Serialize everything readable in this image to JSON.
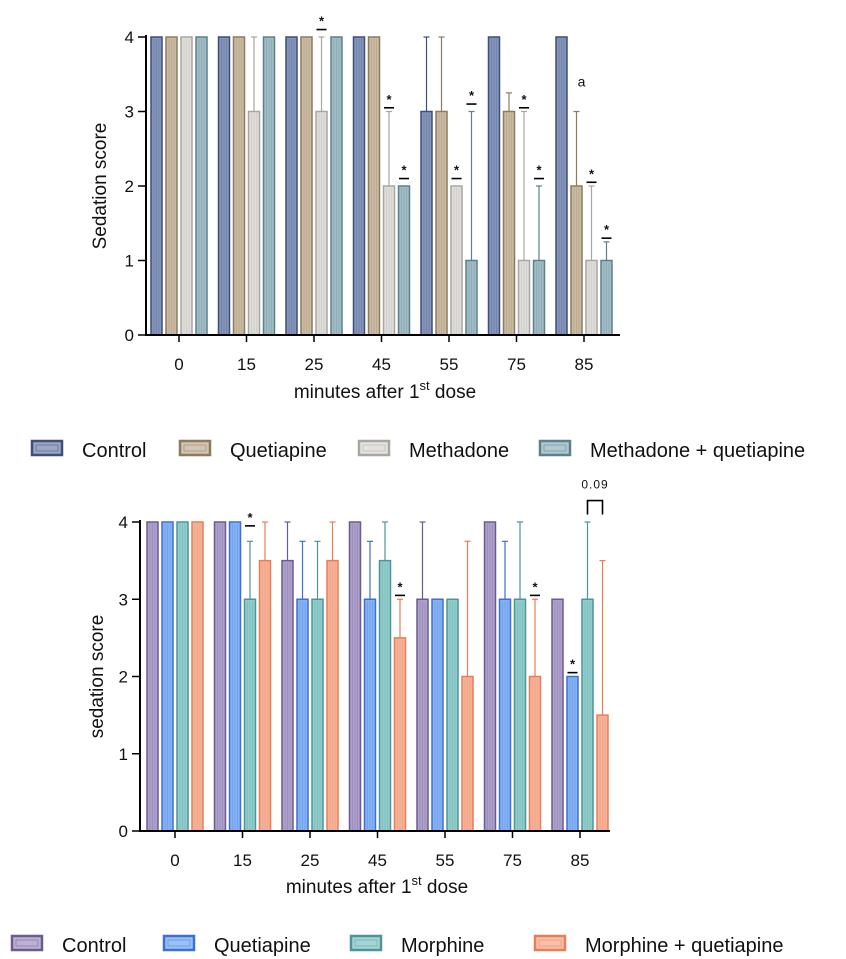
{
  "chart_data": [
    {
      "type": "bar",
      "title": "",
      "xlabel": "minutes after 1",
      "xlabel_sup": "st",
      "xlabel_suffix": " dose",
      "ylabel": "Sedation score",
      "ylim": [
        0,
        4
      ],
      "yticks": [
        "0",
        "1",
        "2",
        "3",
        "4"
      ],
      "categories": [
        "0",
        "15",
        "25",
        "45",
        "55",
        "75",
        "85"
      ],
      "legend_position": "bottom",
      "series": [
        {
          "name": "Control",
          "color": "#6f82ad",
          "edge": "#3d4f7a",
          "values": [
            4,
            4,
            4,
            4,
            3,
            4,
            4
          ],
          "err": [
            0,
            0,
            0,
            0,
            1,
            0,
            0
          ]
        },
        {
          "name": "Quetiapine",
          "color": "#bfae91",
          "edge": "#8c7b5e",
          "values": [
            4,
            4,
            4,
            4,
            3,
            3,
            2
          ],
          "err": [
            0,
            0,
            0,
            0,
            1,
            0.25,
            1
          ]
        },
        {
          "name": "Methadone",
          "color": "#d9d7d2",
          "edge": "#a8a6a1",
          "values": [
            4,
            3,
            3,
            2,
            2,
            1,
            1
          ],
          "err": [
            0,
            1,
            1,
            1,
            0,
            2,
            1
          ]
        },
        {
          "name": "Methadone + quetiapine",
          "color": "#8fb0bb",
          "edge": "#5d808b",
          "values": [
            4,
            4,
            4,
            2,
            1,
            1,
            1
          ],
          "err": [
            0,
            0,
            0,
            0,
            2,
            1,
            0.25
          ]
        }
      ],
      "annotations": [
        {
          "text": "*",
          "category": "25",
          "series": 2,
          "y": 4.1
        },
        {
          "text": "*",
          "category": "45",
          "series": 2,
          "y": 3.05
        },
        {
          "text": "*",
          "category": "45",
          "series": 3,
          "y": 2.1
        },
        {
          "text": "*",
          "category": "55",
          "series": 2,
          "y": 2.1
        },
        {
          "text": "*",
          "category": "55",
          "series": 3,
          "y": 3.1
        },
        {
          "text": "*",
          "category": "75",
          "series": 2,
          "y": 3.05
        },
        {
          "text": "*",
          "category": "75",
          "series": 3,
          "y": 2.1
        },
        {
          "text": "*",
          "category": "85",
          "series": 2,
          "y": 2.05
        },
        {
          "text": "*",
          "category": "85",
          "series": 3,
          "y": 1.3
        },
        {
          "text": "a",
          "category": "85",
          "series": 1,
          "y": 3.2,
          "plain": true
        }
      ]
    },
    {
      "type": "bar",
      "title": "",
      "xlabel": "minutes after 1",
      "xlabel_sup": "st",
      "xlabel_suffix": " dose",
      "ylabel": "sedation score",
      "ylim": [
        0,
        4
      ],
      "yticks": [
        "0",
        "1",
        "2",
        "3",
        "4"
      ],
      "categories": [
        "0",
        "15",
        "25",
        "45",
        "55",
        "75",
        "85"
      ],
      "legend_position": "bottom",
      "series": [
        {
          "name": "Control",
          "color": "#9f8fc1",
          "edge": "#6b5b8e",
          "values": [
            4,
            4,
            3.5,
            4,
            3,
            4,
            3
          ],
          "err": [
            0,
            0,
            0.5,
            0,
            1,
            0,
            0
          ]
        },
        {
          "name": "Quetiapine",
          "color": "#6fa6f2",
          "edge": "#3f6fd1",
          "values": [
            4,
            4,
            3,
            3,
            3,
            3,
            2
          ],
          "err": [
            0,
            0,
            0.75,
            0.75,
            0,
            0.75,
            0
          ]
        },
        {
          "name": "Morphine",
          "color": "#7ec3c4",
          "edge": "#4f9596",
          "values": [
            4,
            3,
            3,
            3.5,
            3,
            3,
            3
          ],
          "err": [
            0,
            0.75,
            0.75,
            0.5,
            0,
            1,
            1
          ]
        },
        {
          "name": "Morphine + quetiapine",
          "color": "#f5a585",
          "edge": "#e77e58",
          "values": [
            4,
            3.5,
            3.5,
            2.5,
            2,
            2,
            1.5
          ],
          "err": [
            0,
            0.5,
            0.5,
            0.5,
            1.75,
            1,
            2
          ]
        }
      ],
      "annotations": [
        {
          "text": "*",
          "category": "15",
          "series": 2,
          "y": 3.95
        },
        {
          "text": "*",
          "category": "45",
          "series": 3,
          "y": 3.05
        },
        {
          "text": "*",
          "category": "75",
          "series": 3,
          "y": 3.05
        },
        {
          "text": "*",
          "category": "85",
          "series": 1,
          "y": 2.05
        }
      ],
      "bracket": {
        "text": "0.09",
        "category": "85",
        "from_series": 2,
        "to_series": 3,
        "y": 4.2
      }
    }
  ]
}
